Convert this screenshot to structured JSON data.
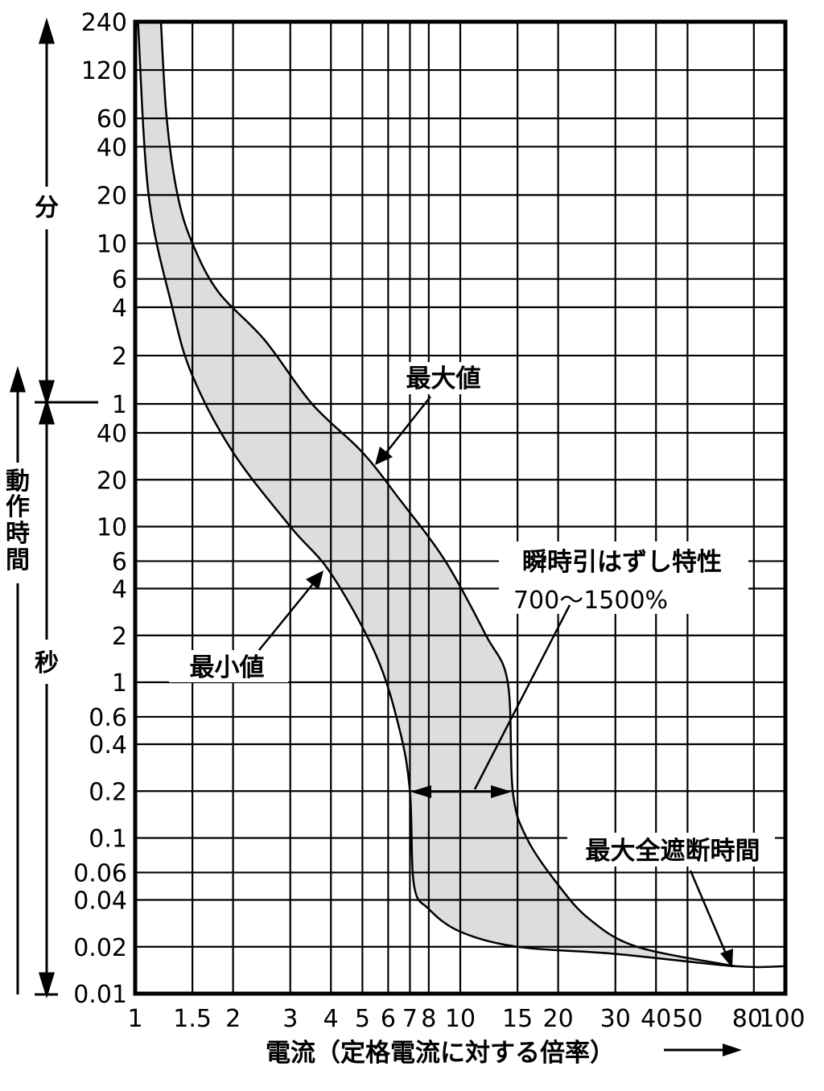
{
  "chart_data": {
    "type": "area",
    "title": "",
    "xlabel": "電流（定格電流に対する倍率）",
    "xscale": "log",
    "xlim": [
      1,
      100
    ],
    "x_ticks": [
      1,
      1.5,
      2,
      3,
      4,
      5,
      6,
      7,
      8,
      10,
      15,
      20,
      30,
      40,
      50,
      80,
      100
    ],
    "x_tick_labels": [
      "1",
      "1.5",
      "2",
      "3",
      "4",
      "5",
      "6",
      "7",
      "8",
      "10",
      "15",
      "20",
      "30",
      "40",
      "50",
      "80",
      "100"
    ],
    "y_axis": {
      "scale": "log",
      "labels": [
        "動",
        "作",
        "時",
        "間"
      ],
      "units": [
        {
          "label": "分",
          "range": [
            1,
            240
          ],
          "ticks": [
            240,
            120,
            60,
            40,
            20,
            10,
            6,
            4,
            2,
            1
          ],
          "tick_labels": [
            "240",
            "120",
            "60",
            "40",
            "20",
            "10",
            "6",
            "4",
            "2",
            "1"
          ]
        },
        {
          "label": "秒",
          "range": [
            0.01,
            60
          ],
          "ticks": [
            40,
            20,
            10,
            6,
            4,
            2,
            1,
            0.6,
            0.4,
            0.2,
            0.1,
            0.06,
            0.04,
            0.02,
            0.01
          ],
          "tick_labels": [
            "40",
            "20",
            "10",
            "6",
            "4",
            "2",
            "1",
            "0.6",
            "0.4",
            "0.2",
            "0.1",
            "0.06",
            "0.04",
            "0.02",
            "0.01"
          ]
        }
      ]
    },
    "grid": true,
    "series": [
      {
        "name": "最大値",
        "values": [
          {
            "x": 1.2,
            "t_min": 240
          },
          {
            "x": 1.25,
            "t_min": 60
          },
          {
            "x": 1.35,
            "t_min": 20
          },
          {
            "x": 1.5,
            "t_min": 10
          },
          {
            "x": 1.8,
            "t_min": 5
          },
          {
            "x": 2.5,
            "t_min": 2.5
          },
          {
            "x": 3.5,
            "t_min": 1
          },
          {
            "x": 5,
            "t_sec": 30
          },
          {
            "x": 6.5,
            "t_sec": 15
          },
          {
            "x": 9,
            "t_sec": 6
          },
          {
            "x": 12,
            "t_sec": 2
          },
          {
            "x": 14,
            "t_sec": 1
          },
          {
            "x": 14.5,
            "t_sec": 0.2
          },
          {
            "x": 16,
            "t_sec": 0.1
          },
          {
            "x": 20,
            "t_sec": 0.05
          },
          {
            "x": 25,
            "t_sec": 0.03
          },
          {
            "x": 35,
            "t_sec": 0.02
          },
          {
            "x": 70,
            "t_sec": 0.015
          }
        ]
      },
      {
        "name": "最小値",
        "values": [
          {
            "x": 1.02,
            "t_min": 240
          },
          {
            "x": 1.1,
            "t_min": 20
          },
          {
            "x": 1.3,
            "t_min": 4
          },
          {
            "x": 1.5,
            "t_min": 1.5
          },
          {
            "x": 2,
            "t_sec": 30
          },
          {
            "x": 3,
            "t_sec": 10
          },
          {
            "x": 4,
            "t_sec": 5
          },
          {
            "x": 5.5,
            "t_sec": 1.5
          },
          {
            "x": 6.5,
            "t_sec": 0.5
          },
          {
            "x": 7,
            "t_sec": 0.2
          },
          {
            "x": 7.2,
            "t_sec": 0.05
          },
          {
            "x": 8,
            "t_sec": 0.035
          },
          {
            "x": 10,
            "t_sec": 0.025
          },
          {
            "x": 15,
            "t_sec": 0.02
          },
          {
            "x": 30,
            "t_sec": 0.018
          },
          {
            "x": 70,
            "t_sec": 0.015
          },
          {
            "x": 100,
            "t_sec": 0.015
          }
        ]
      }
    ],
    "annotations": [
      {
        "text": "最大値"
      },
      {
        "text": "最小値"
      },
      {
        "text": "瞬時引はずし特性"
      },
      {
        "text": "700〜1500%"
      },
      {
        "text": "最大全遮断時間"
      }
    ],
    "colors": {
      "band": "#dddddd",
      "line": "#000000"
    }
  }
}
